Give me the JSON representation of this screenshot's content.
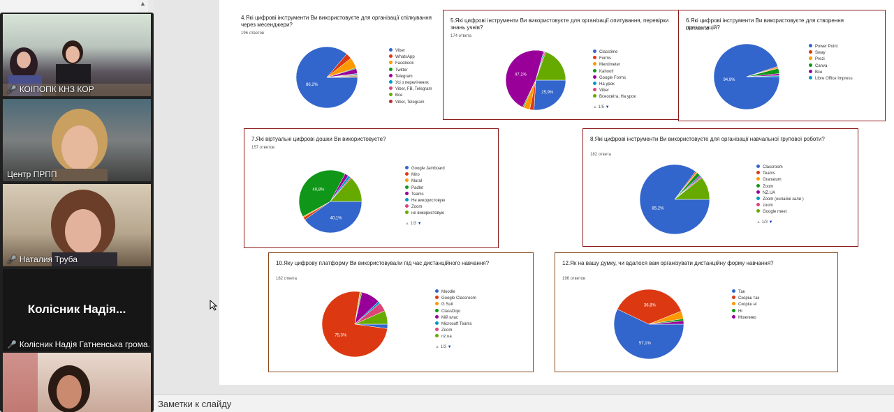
{
  "participants": [
    {
      "name": "КОІПОПК КНЗ КОР"
    },
    {
      "name": "Центр ПРПП"
    },
    {
      "name": "Наталия Труба"
    },
    {
      "name": "Колісник Надія Гатненська грома...",
      "big": "Колісник Надія..."
    }
  ],
  "notes": "Заметки к слайду",
  "colors": {
    "blue": "#3a66d1",
    "red": "#dc3912",
    "orange": "#ff9900",
    "green": "#109618",
    "purple": "#990099",
    "cyan": "#0099c6",
    "pink": "#dd4477",
    "olive": "#66aa00"
  },
  "cards": [
    {
      "q": "4.Які цифрові інструменти Ви використовуєте для організації спілкування через месенджери?",
      "count": "196 ответов",
      "legend": [
        "Viber",
        "WhatsApp",
        "Facebook",
        "Twitter",
        "Telegram",
        "Усі з перелічених",
        "Viber, FB, Telegram",
        "Все",
        "Viber, Telegram"
      ],
      "slices": [
        86.2,
        3.1,
        5.6,
        0.5,
        2.6,
        0.5,
        0.5,
        0.5,
        0.5
      ],
      "labels": [
        "86,2%"
      ],
      "pager": ""
    },
    {
      "q": "5.Які цифрові інструменти Ви використовуєте для організації опитування, перевірки знань учнів?",
      "count": "174 ответа",
      "legend": [
        "Classtime",
        "Forms",
        "Mentimeter",
        "Kahoot!",
        "Google Forms",
        "На урок",
        "Viber",
        "Всеосвіта, На урок"
      ],
      "slices": [
        25.9,
        2.3,
        3.4,
        0.6,
        47.1,
        0.6,
        0.6,
        19.5
      ],
      "labels": [
        "25,9%",
        "47,1%"
      ],
      "pager": "1/5"
    },
    {
      "q": "6.Які цифрові інструменти Ви використовуєте для створення презентацій?",
      "count": "195 ответов",
      "legend": [
        "Power Point",
        "Sway",
        "Prezi",
        "Canva",
        "Все",
        "Libre Office Impress"
      ],
      "slices": [
        94.9,
        0.5,
        0.5,
        2.6,
        1.0,
        0.5
      ],
      "labels": [
        "94,9%"
      ],
      "pager": ""
    },
    {
      "q": "7.Які віртуальні цифрові дошки Ви використовуєте?",
      "count": "157 ответов",
      "legend": [
        "Google Jamboard",
        "Miro",
        "Mural",
        "Padlet",
        "Teams",
        "Не використовую",
        "Zoom",
        "не використовую"
      ],
      "slices": [
        40.1,
        1.3,
        0.6,
        40.8,
        1.9,
        1.3,
        0.6,
        13.4
      ],
      "labels": [
        "40,1%",
        "40,8%"
      ],
      "pager": "1/3"
    },
    {
      "q": "8.Які цифрові інструменти Ви використовуєте для організації навчальної групової роботи?",
      "count": "182 ответа",
      "legend": [
        "Classroom",
        "Teams",
        "Granatum",
        "Zoom",
        "NZ.UA",
        "Zoom (онлайні зали )",
        "zoom",
        "Google meet"
      ],
      "slices": [
        85.2,
        0.5,
        0.5,
        1.6,
        0.5,
        0.5,
        0.5,
        10.7
      ],
      "labels": [
        "85,2%"
      ],
      "pager": "1/3"
    },
    {
      "q": "10.Яку цифрову платформу Ви використовували під час дистанційного навчання?",
      "count": "182 ответа",
      "legend": [
        "Moodle",
        "Google Classroom",
        "G Suit",
        "ClassDojo",
        "Мій клас",
        "Microsoft Teams",
        "Zoom",
        "nz.ua"
      ],
      "slices": [
        2.2,
        75.3,
        0.5,
        0.5,
        9.3,
        1.1,
        4.4,
        6.7
      ],
      "labels": [
        "75,3%"
      ],
      "pager": "1/3"
    },
    {
      "q": "12.Як на вашу думку, чи вдалося вам організувати дистанційну форму навчання?",
      "count": "196 ответов",
      "legend": [
        "Так",
        "Скоріш так",
        "Скоріш ні",
        "Ні",
        "Можливо"
      ],
      "slices": [
        57.1,
        36.8,
        3.6,
        1.0,
        1.5
      ],
      "labels": [
        "57,1%",
        "36,8%"
      ],
      "pager": ""
    }
  ]
}
